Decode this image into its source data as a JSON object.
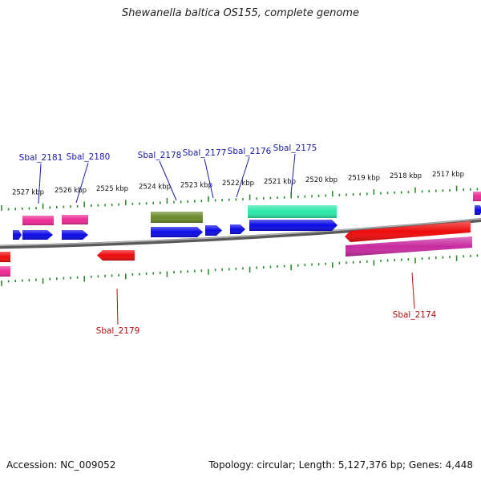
{
  "title": "Shewanella baltica OS155, complete genome",
  "footer": {
    "accession": "Accession: NC_009052",
    "topology": "Topology: circular; Length: 5,127,376 bp; Genes: 4,448"
  },
  "colors": {
    "backbone": "#7a7a7a",
    "tick": "#2a8a2a",
    "gene_label_forward": "#1a1aa8",
    "gene_label_reverse": "#b01010",
    "cds_blue": "#0a0ae6",
    "rna_pink": "#ee2a96",
    "cds_red": "#ee0a0a",
    "olive": "#6a8a2a",
    "mint": "#2ae8a8",
    "magenta": "#c82aa0"
  },
  "scale_labels": [
    "2527 kbp",
    "2526 kbp",
    "2525 kbp",
    "2524 kbp",
    "2523 kbp",
    "2522 kbp",
    "2521 kbp",
    "2520 kbp",
    "2519 kbp",
    "2518 kbp",
    "2517 kbp"
  ],
  "gene_labels": [
    {
      "text": "Sbal_2181",
      "strand": "forward"
    },
    {
      "text": "Sbal_2180",
      "strand": "forward"
    },
    {
      "text": "Sbal_2178",
      "strand": "forward"
    },
    {
      "text": "Sbal_2177",
      "strand": "forward"
    },
    {
      "text": "Sbal_2176",
      "strand": "forward"
    },
    {
      "text": "Sbal_2175",
      "strand": "forward"
    },
    {
      "text": "Sbal_2179",
      "strand": "reverse"
    },
    {
      "text": "Sbal_2174",
      "strand": "reverse"
    }
  ]
}
